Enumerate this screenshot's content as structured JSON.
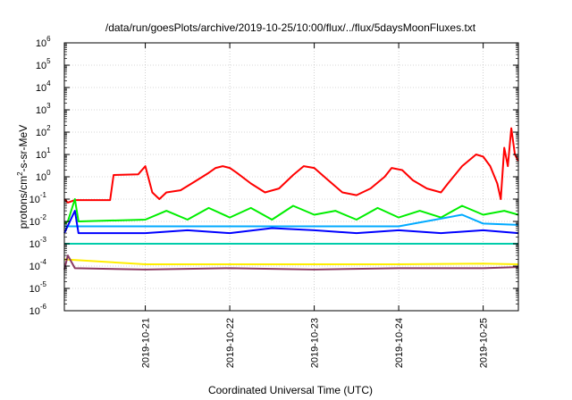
{
  "chart_data": {
    "type": "line",
    "title": "/data/run/goesPlots/archive/2019-10-25/10:00/flux/../flux/5daysMoonFluxes.txt",
    "xlabel": "Coordinated Universal Time (UTC)",
    "ylabel": "protons/cm2-s-sr-MeV",
    "ylabel_parts": {
      "pre": "protons/cm",
      "sup": "2",
      "post": "-s-sr-MeV"
    },
    "yscale": "log",
    "ylim": [
      1e-06,
      1000000.0
    ],
    "y_ticks": [
      {
        "base": "10",
        "exp": "-6"
      },
      {
        "base": "10",
        "exp": "-5"
      },
      {
        "base": "10",
        "exp": "-4"
      },
      {
        "base": "10",
        "exp": "-3"
      },
      {
        "base": "10",
        "exp": "-2"
      },
      {
        "base": "10",
        "exp": "-1"
      },
      {
        "base": "10",
        "exp": "0"
      },
      {
        "base": "10",
        "exp": "1"
      },
      {
        "base": "10",
        "exp": "2"
      },
      {
        "base": "10",
        "exp": "3"
      },
      {
        "base": "10",
        "exp": "4"
      },
      {
        "base": "10",
        "exp": "5"
      },
      {
        "base": "10",
        "exp": "6"
      }
    ],
    "xlim": [
      "2019-10-20T01:00",
      "2019-10-25T10:00"
    ],
    "x_ticks": [
      "2019-10-21",
      "2019-10-22",
      "2019-10-23",
      "2019-10-24",
      "2019-10-25"
    ],
    "grid": true,
    "series": [
      {
        "color": "#ff0000",
        "points": [
          [
            "2019-10-20T01:00",
            0.1
          ],
          [
            "2019-10-20T02:00",
            0.07
          ],
          [
            "2019-10-20T04:00",
            0.09
          ],
          [
            "2019-10-20T14:00",
            0.09
          ],
          [
            "2019-10-20T15:00",
            1.2
          ],
          [
            "2019-10-20T22:00",
            1.3
          ],
          [
            "2019-10-21T00:00",
            3.0
          ],
          [
            "2019-10-21T02:00",
            0.2
          ],
          [
            "2019-10-21T04:00",
            0.1
          ],
          [
            "2019-10-21T06:00",
            0.2
          ],
          [
            "2019-10-21T10:00",
            0.25
          ],
          [
            "2019-10-21T14:00",
            0.6
          ],
          [
            "2019-10-21T18:00",
            1.5
          ],
          [
            "2019-10-21T20:00",
            2.5
          ],
          [
            "2019-10-21T22:00",
            3.0
          ],
          [
            "2019-10-22T00:00",
            2.5
          ],
          [
            "2019-10-22T02:00",
            1.5
          ],
          [
            "2019-10-22T06:00",
            0.5
          ],
          [
            "2019-10-22T10:00",
            0.2
          ],
          [
            "2019-10-22T14:00",
            0.3
          ],
          [
            "2019-10-22T18:00",
            1.2
          ],
          [
            "2019-10-22T21:00",
            3.0
          ],
          [
            "2019-10-23T00:00",
            2.5
          ],
          [
            "2019-10-23T04:00",
            0.7
          ],
          [
            "2019-10-23T08:00",
            0.2
          ],
          [
            "2019-10-23T12:00",
            0.15
          ],
          [
            "2019-10-23T16:00",
            0.3
          ],
          [
            "2019-10-23T20:00",
            1.0
          ],
          [
            "2019-10-23T22:00",
            2.5
          ],
          [
            "2019-10-24T01:00",
            2.0
          ],
          [
            "2019-10-24T04:00",
            0.7
          ],
          [
            "2019-10-24T08:00",
            0.3
          ],
          [
            "2019-10-24T12:00",
            0.2
          ],
          [
            "2019-10-24T14:00",
            0.5
          ],
          [
            "2019-10-24T18:00",
            3.0
          ],
          [
            "2019-10-24T22:00",
            10
          ],
          [
            "2019-10-25T00:00",
            8
          ],
          [
            "2019-10-25T02:00",
            3
          ],
          [
            "2019-10-25T04:00",
            0.5
          ],
          [
            "2019-10-25T05:00",
            0.1
          ],
          [
            "2019-10-25T06:00",
            20
          ],
          [
            "2019-10-25T07:00",
            3
          ],
          [
            "2019-10-25T08:00",
            150
          ],
          [
            "2019-10-25T09:00",
            10
          ],
          [
            "2019-10-25T10:00",
            5
          ]
        ]
      },
      {
        "color": "#00ee00",
        "points": [
          [
            "2019-10-20T01:00",
            0.008
          ],
          [
            "2019-10-20T02:00",
            0.01
          ],
          [
            "2019-10-20T04:00",
            0.1
          ],
          [
            "2019-10-20T05:00",
            0.01
          ],
          [
            "2019-10-21T00:00",
            0.012
          ],
          [
            "2019-10-21T06:00",
            0.03
          ],
          [
            "2019-10-21T12:00",
            0.012
          ],
          [
            "2019-10-21T18:00",
            0.04
          ],
          [
            "2019-10-22T00:00",
            0.015
          ],
          [
            "2019-10-22T06:00",
            0.04
          ],
          [
            "2019-10-22T12:00",
            0.012
          ],
          [
            "2019-10-22T18:00",
            0.05
          ],
          [
            "2019-10-23T00:00",
            0.02
          ],
          [
            "2019-10-23T06:00",
            0.03
          ],
          [
            "2019-10-23T12:00",
            0.012
          ],
          [
            "2019-10-23T18:00",
            0.04
          ],
          [
            "2019-10-24T00:00",
            0.015
          ],
          [
            "2019-10-24T06:00",
            0.03
          ],
          [
            "2019-10-24T12:00",
            0.015
          ],
          [
            "2019-10-24T18:00",
            0.05
          ],
          [
            "2019-10-25T00:00",
            0.02
          ],
          [
            "2019-10-25T06:00",
            0.03
          ],
          [
            "2019-10-25T10:00",
            0.02
          ]
        ]
      },
      {
        "color": "#00aaff",
        "points": [
          [
            "2019-10-20T01:00",
            0.006
          ],
          [
            "2019-10-21T00:00",
            0.006
          ],
          [
            "2019-10-22T00:00",
            0.006
          ],
          [
            "2019-10-23T00:00",
            0.006
          ],
          [
            "2019-10-24T00:00",
            0.006
          ],
          [
            "2019-10-24T18:00",
            0.02
          ],
          [
            "2019-10-25T00:00",
            0.008
          ],
          [
            "2019-10-25T10:00",
            0.007
          ]
        ]
      },
      {
        "color": "#0000ff",
        "points": [
          [
            "2019-10-20T01:00",
            0.003
          ],
          [
            "2019-10-20T04:00",
            0.03
          ],
          [
            "2019-10-20T05:00",
            0.003
          ],
          [
            "2019-10-21T00:00",
            0.003
          ],
          [
            "2019-10-21T12:00",
            0.004
          ],
          [
            "2019-10-22T00:00",
            0.003
          ],
          [
            "2019-10-22T12:00",
            0.005
          ],
          [
            "2019-10-23T00:00",
            0.004
          ],
          [
            "2019-10-23T12:00",
            0.003
          ],
          [
            "2019-10-24T00:00",
            0.004
          ],
          [
            "2019-10-24T12:00",
            0.003
          ],
          [
            "2019-10-25T00:00",
            0.004
          ],
          [
            "2019-10-25T10:00",
            0.003
          ]
        ]
      },
      {
        "color": "#00ccaa",
        "points": [
          [
            "2019-10-20T01:00",
            0.001
          ],
          [
            "2019-10-21T00:00",
            0.001
          ],
          [
            "2019-10-22T00:00",
            0.001
          ],
          [
            "2019-10-23T00:00",
            0.001
          ],
          [
            "2019-10-24T00:00",
            0.001
          ],
          [
            "2019-10-25T00:00",
            0.001
          ],
          [
            "2019-10-25T10:00",
            0.001
          ]
        ]
      },
      {
        "color": "#ffee00",
        "points": [
          [
            "2019-10-20T01:00",
            0.0002
          ],
          [
            "2019-10-21T00:00",
            0.00012
          ],
          [
            "2019-10-22T00:00",
            0.00012
          ],
          [
            "2019-10-23T00:00",
            0.00012
          ],
          [
            "2019-10-24T00:00",
            0.00012
          ],
          [
            "2019-10-25T00:00",
            0.00013
          ],
          [
            "2019-10-25T10:00",
            0.00012
          ]
        ]
      },
      {
        "color": "#8b3a62",
        "points": [
          [
            "2019-10-20T01:00",
            7e-05
          ],
          [
            "2019-10-20T02:00",
            0.0003
          ],
          [
            "2019-10-20T04:00",
            8e-05
          ],
          [
            "2019-10-21T00:00",
            7e-05
          ],
          [
            "2019-10-22T00:00",
            8e-05
          ],
          [
            "2019-10-23T00:00",
            7e-05
          ],
          [
            "2019-10-24T00:00",
            8e-05
          ],
          [
            "2019-10-25T00:00",
            8e-05
          ],
          [
            "2019-10-25T10:00",
            9e-05
          ]
        ]
      }
    ]
  }
}
